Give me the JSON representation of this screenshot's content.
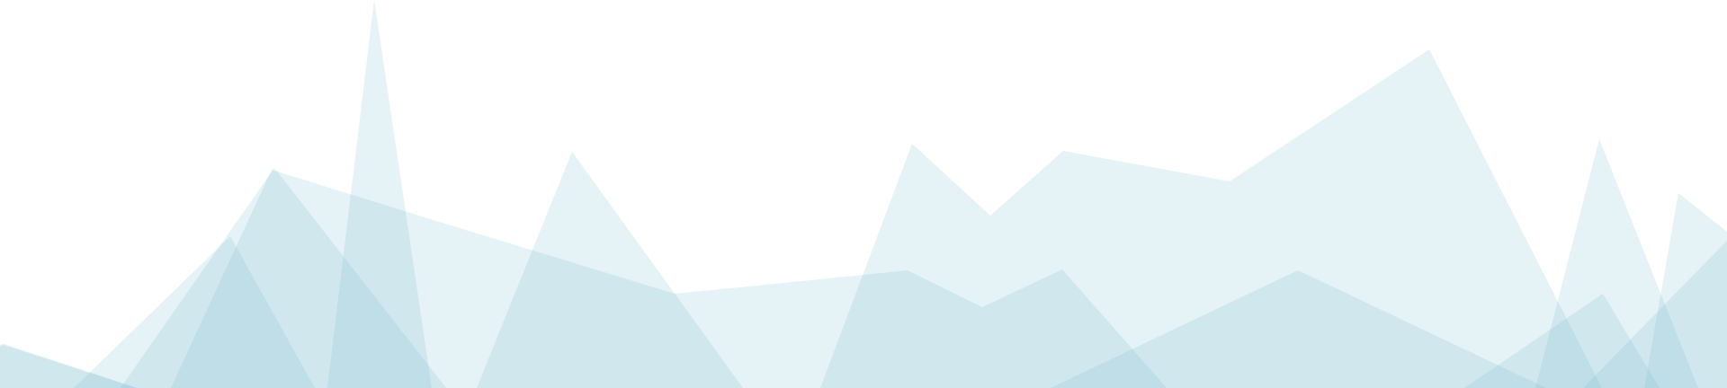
{
  "background": {
    "page_color": "#ffffff",
    "layer_color": "#7fbdd1",
    "back_layer_opacity": 0.2,
    "front_layer_opacity": 0.2
  }
}
